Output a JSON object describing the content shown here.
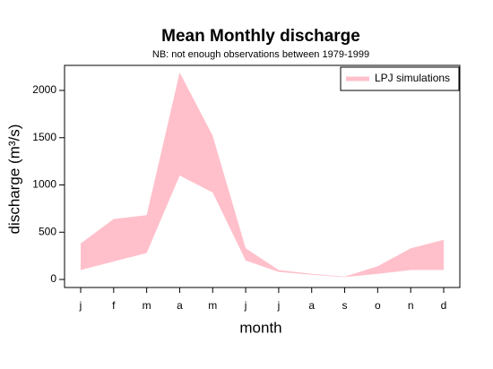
{
  "chart_data": {
    "type": "band",
    "title": "Mean Monthly discharge",
    "subtitle": "NB: not enough observations between 1979-1999",
    "x_label": "month",
    "y_label": "discharge (m³/s)",
    "categories": [
      "j",
      "f",
      "m",
      "a",
      "m",
      "j",
      "j",
      "a",
      "s",
      "o",
      "n",
      "d"
    ],
    "series": [
      {
        "name": "LPJ simulations",
        "color": "#ffc0cb",
        "low": [
          100,
          190,
          280,
          1100,
          920,
          200,
          80,
          50,
          25,
          60,
          100,
          100
        ],
        "high": [
          380,
          640,
          680,
          2190,
          1520,
          330,
          100,
          60,
          30,
          140,
          330,
          420
        ]
      }
    ],
    "ylim": [
      -85,
      2265
    ],
    "yticks": [
      0,
      500,
      1000,
      1500,
      2000
    ],
    "legend": "top-right"
  }
}
